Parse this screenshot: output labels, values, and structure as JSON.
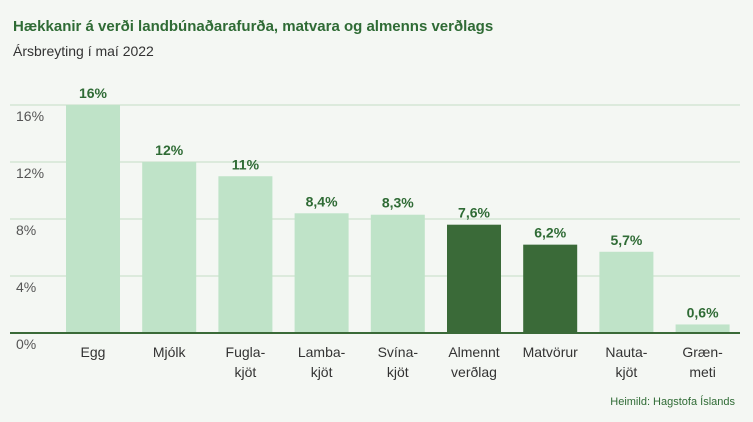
{
  "title": "Hækkanir á verði landbúnaðarafurða, matvara og almenns verðlags",
  "subtitle": "Ársbreyting í maí 2022",
  "source": "Heimild: Hagstofa Íslands",
  "colors": {
    "light_bar": "#bfe3c8",
    "dark_bar": "#3a6a38",
    "label": "#2f6b35",
    "grid": "#c4dcc6",
    "axis": "#3a6a38",
    "background": "#f4f7f3"
  },
  "chart_data": {
    "type": "bar",
    "title": "Hækkanir á verði landbúnaðarafurða, matvara og almenns verðlags",
    "subtitle": "Ársbreyting í maí 2022",
    "categories": [
      [
        "Egg"
      ],
      [
        "Mjólk"
      ],
      [
        "Fugla-",
        "kjöt"
      ],
      [
        "Lamba-",
        "kjöt"
      ],
      [
        "Svína-",
        "kjöt"
      ],
      [
        "Almennt",
        "verðlag"
      ],
      [
        "Matvörur"
      ],
      [
        "Nauta-",
        "kjöt"
      ],
      [
        "Græn-",
        "meti"
      ]
    ],
    "values": [
      16,
      12,
      11,
      8.4,
      8.3,
      7.6,
      6.2,
      5.7,
      0.6
    ],
    "value_labels": [
      "16%",
      "12%",
      "11%",
      "8,4%",
      "8,3%",
      "7,6%",
      "6,2%",
      "5,7%",
      "0,6%"
    ],
    "highlight": [
      false,
      false,
      false,
      false,
      false,
      true,
      true,
      false,
      false
    ],
    "ylim": [
      0,
      16
    ],
    "yticks": [
      0,
      4,
      8,
      12,
      16
    ],
    "ytick_labels": [
      "0%",
      "4%",
      "8%",
      "12%",
      "16%"
    ],
    "grid": true,
    "legend": "none"
  }
}
